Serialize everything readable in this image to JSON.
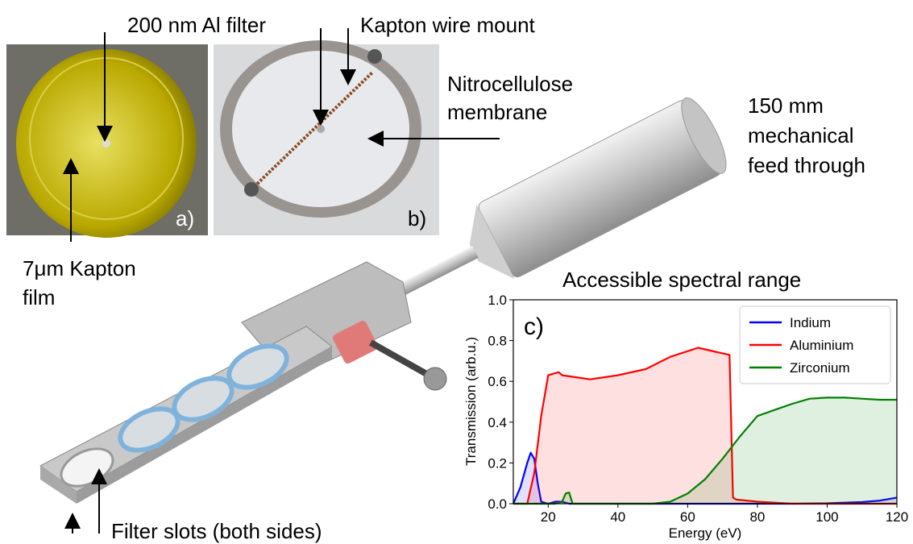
{
  "figure": {
    "panel_a": "a)",
    "panel_b": "b)",
    "al_filter": "200 nm Al filter",
    "wire_mount": "Kapton wire mount",
    "membrane": [
      "Nitrocellulose",
      "membrane"
    ],
    "feedthrough": [
      "150 mm",
      "mechanical",
      "feed through"
    ],
    "kapton_film": [
      "7μm Kapton",
      "film"
    ],
    "filter_slots": "Filter slots (both sides)"
  },
  "chart_data": {
    "type": "line",
    "title": "Accessible spectral range",
    "panel_label": "c)",
    "xlabel": "Energy (eV)",
    "ylabel": "Transmission (arb.u.)",
    "xlim": [
      10,
      120
    ],
    "ylim": [
      0,
      1
    ],
    "xticks": [
      20,
      40,
      60,
      80,
      100,
      120
    ],
    "yticks": [
      {
        "value": 0,
        "label": "0.0"
      },
      {
        "value": 0.2,
        "label": "0.2"
      },
      {
        "value": 0.4,
        "label": "0.4"
      },
      {
        "value": 0.6,
        "label": "0.6"
      },
      {
        "value": 0.8,
        "label": "0.8"
      },
      {
        "value": 1,
        "label": "1.0"
      }
    ],
    "legend": "upper right",
    "fill_under": true,
    "series": [
      {
        "name": "Indium",
        "color": "#0000ff",
        "x": [
          10,
          12,
          14,
          15,
          16,
          17,
          18,
          20,
          22,
          24,
          26,
          30,
          60,
          90,
          100,
          110,
          115,
          120
        ],
        "values": [
          0,
          0.08,
          0.2,
          0.25,
          0.22,
          0.1,
          0.01,
          0,
          0.01,
          0.01,
          0,
          0,
          0,
          0,
          0.002,
          0.008,
          0.015,
          0.03
        ]
      },
      {
        "name": "Aluminium",
        "color": "#ff0000",
        "x": [
          10,
          14,
          16,
          18,
          20,
          22,
          23,
          24,
          28,
          32,
          40,
          48,
          55,
          63,
          68,
          72,
          73,
          74,
          80,
          90,
          120
        ],
        "values": [
          0,
          0,
          0.15,
          0.43,
          0.63,
          0.64,
          0.645,
          0.63,
          0.62,
          0.61,
          0.63,
          0.66,
          0.72,
          0.765,
          0.745,
          0.73,
          0.03,
          0.02,
          0.01,
          0,
          0
        ]
      },
      {
        "name": "Zirconium",
        "color": "#008000",
        "x": [
          10,
          22,
          24,
          25,
          26,
          27,
          30,
          50,
          55,
          60,
          65,
          70,
          75,
          80,
          85,
          90,
          95,
          100,
          105,
          110,
          115,
          120
        ],
        "values": [
          0,
          0,
          0.01,
          0.05,
          0.055,
          0,
          0,
          0,
          0.01,
          0.05,
          0.12,
          0.22,
          0.33,
          0.43,
          0.46,
          0.49,
          0.515,
          0.52,
          0.52,
          0.515,
          0.51,
          0.51
        ]
      }
    ]
  }
}
